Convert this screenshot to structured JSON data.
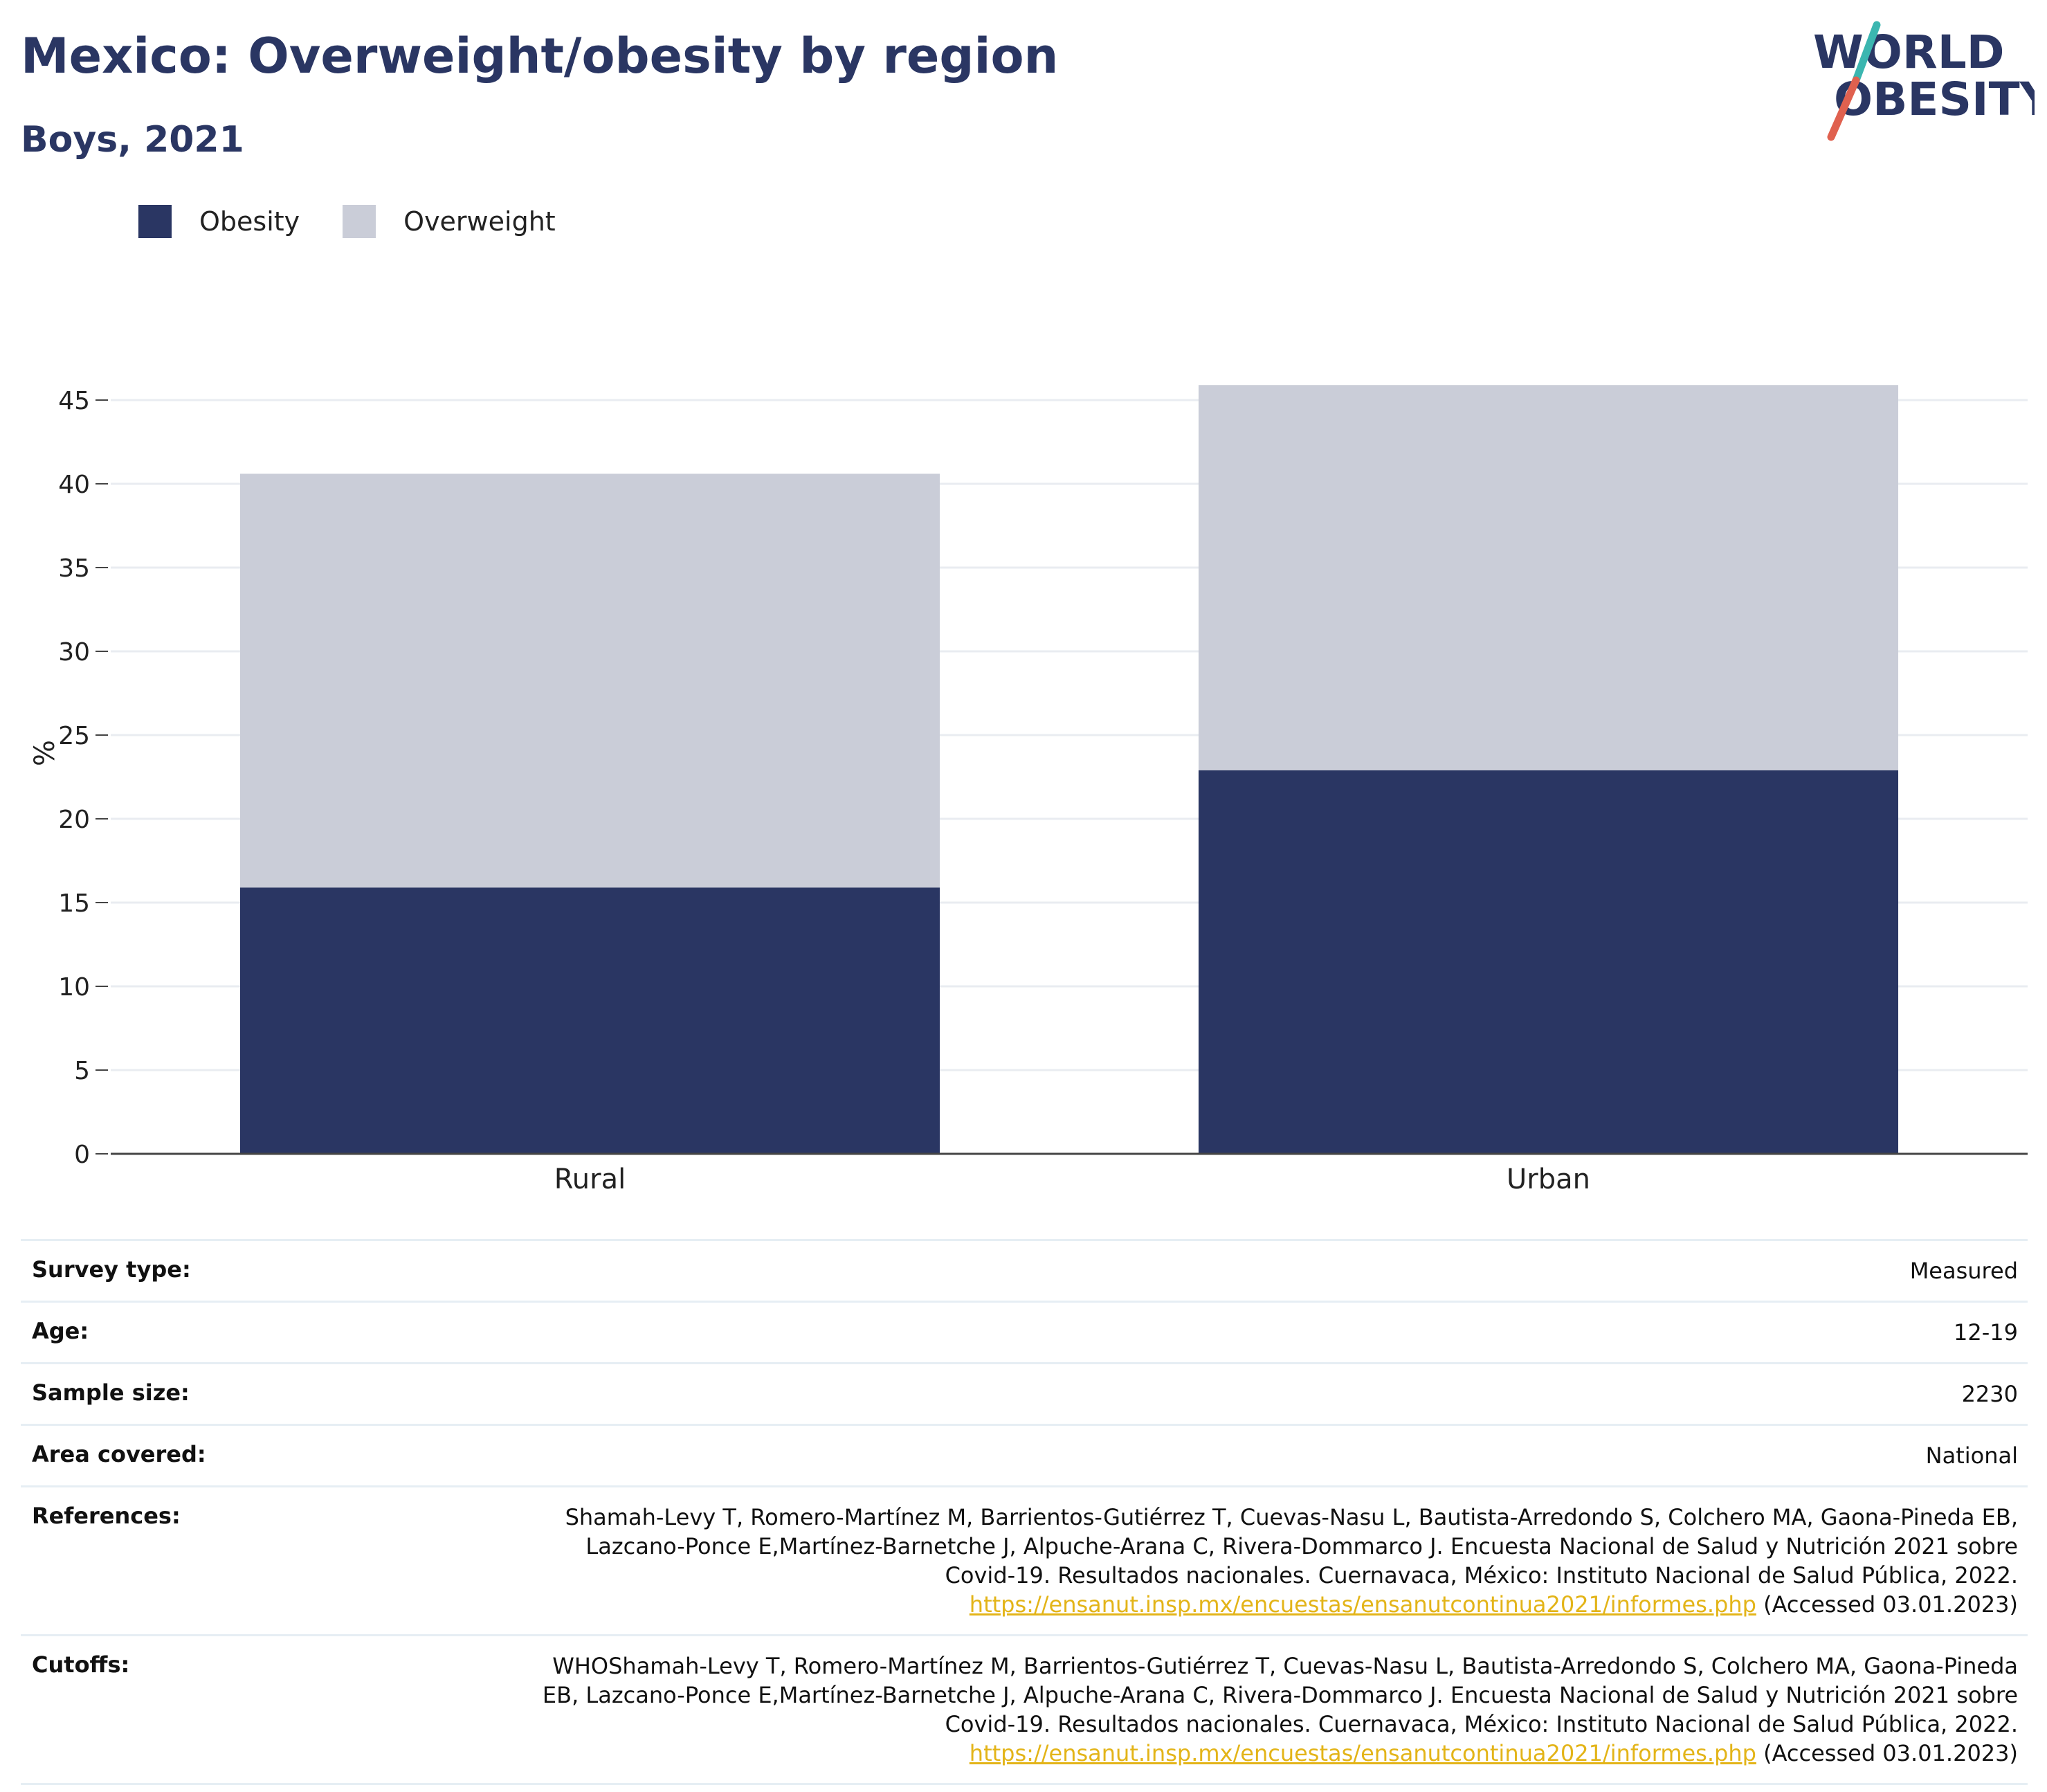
{
  "header": {
    "title": "Mexico: Overweight/obesity by region",
    "subtitle": "Boys, 2021"
  },
  "logo": {
    "line1": "WORLD",
    "line2": "OBESITY",
    "slash_color_top": "#3bb6b0",
    "slash_color_bottom": "#e0614f",
    "text_color": "#2a3663"
  },
  "colors": {
    "obesity": "#2a3663",
    "overweight": "#cacdd8",
    "link": "#e3b418"
  },
  "chart_data": {
    "type": "bar",
    "stacked": true,
    "categories": [
      "Rural",
      "Urban"
    ],
    "series": [
      {
        "name": "Obesity",
        "values": [
          15.9,
          22.9
        ]
      },
      {
        "name": "Overweight",
        "values": [
          24.7,
          23.0
        ]
      }
    ],
    "ylabel": "%",
    "ylim": [
      0,
      46
    ],
    "yticks": [
      0,
      5,
      10,
      15,
      20,
      25,
      30,
      35,
      40,
      45
    ],
    "grid": true,
    "legend_position": "top-left"
  },
  "info": {
    "survey_type": {
      "label": "Survey type:",
      "value": "Measured"
    },
    "age": {
      "label": "Age:",
      "value": "12-19"
    },
    "sample_size": {
      "label": "Sample size:",
      "value": "2230"
    },
    "area_covered": {
      "label": "Area covered:",
      "value": "National"
    },
    "references": {
      "label": "References:",
      "line1": "Shamah-Levy T, Romero-Martínez M, Barrientos-Gutiérrez T, Cuevas-Nasu L, Bautista-Arredondo S, Colchero MA, Gaona-Pineda EB,",
      "line2": "Lazcano-Ponce E,Martínez-Barnetche J, Alpuche-Arana C, Rivera-Dommarco J. Encuesta Nacional de Salud y Nutrición 2021 sobre",
      "line3": "Covid-19. Resultados nacionales. Cuernavaca, México: Instituto Nacional de Salud Pública, 2022.",
      "link": "https://ensanut.insp.mx/encuestas/ensanutcontinua2021/informes.php",
      "accessed": " (Accessed 03.01.2023)"
    },
    "cutoffs": {
      "label": "Cutoffs:",
      "line1": "WHOShamah-Levy T, Romero-Martínez M, Barrientos-Gutiérrez T, Cuevas-Nasu L, Bautista-Arredondo S, Colchero MA, Gaona-Pineda",
      "line2": "EB, Lazcano-Ponce E,Martínez-Barnetche J, Alpuche-Arana C, Rivera-Dommarco J. Encuesta Nacional de Salud y Nutrición 2021 sobre",
      "line3": "Covid-19. Resultados nacionales. Cuernavaca, México: Instituto Nacional de Salud Pública, 2022.",
      "link": "https://ensanut.insp.mx/encuestas/ensanutcontinua2021/informes.php",
      "accessed": " (Accessed 03.01.2023)"
    }
  }
}
